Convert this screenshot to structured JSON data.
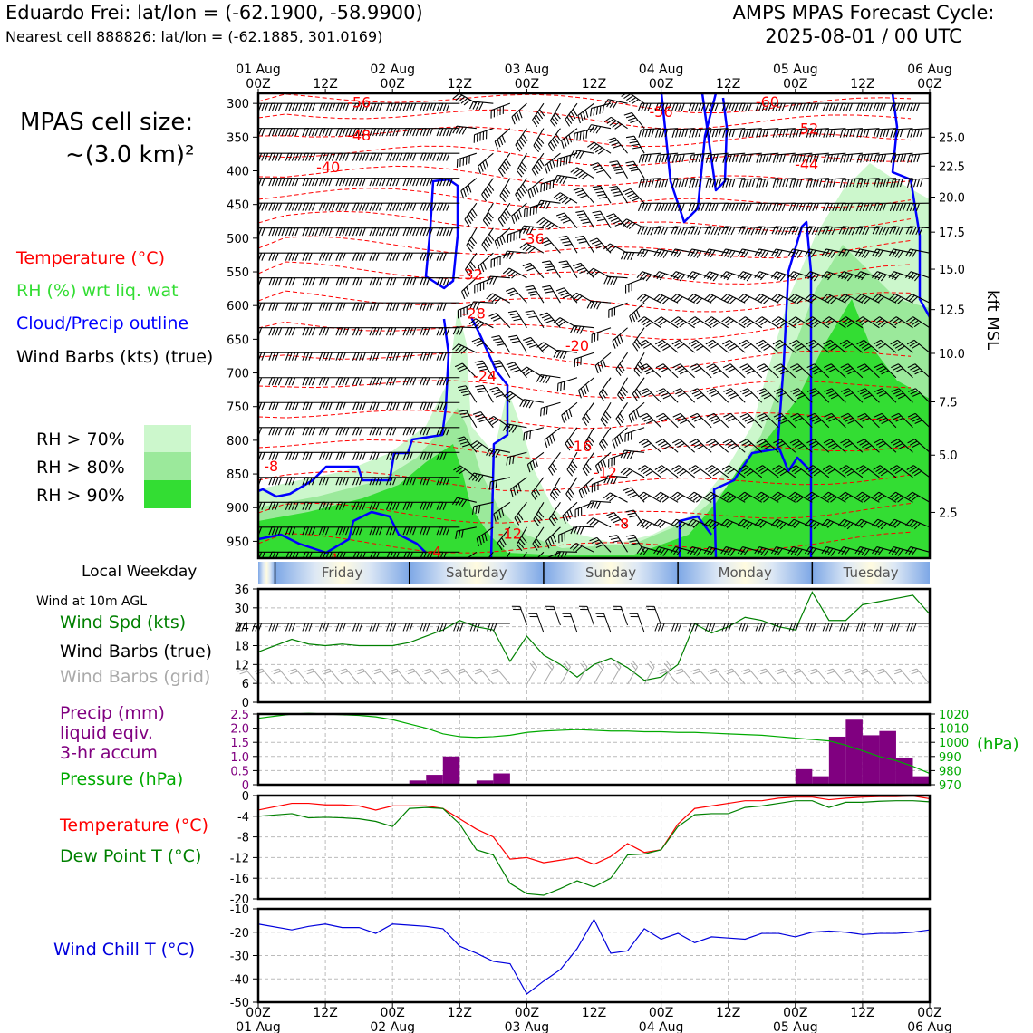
{
  "header": {
    "title_left": "Eduardo Frei: lat/lon = (-62.1900, -58.9900)",
    "subtitle_left": "Nearest cell 888826: lat/lon = (-62.1885, 301.0169)",
    "title_right_1": "AMPS MPAS Forecast Cycle:",
    "title_right_2": "2025-08-01 / 00 UTC",
    "cell_size_1": "MPAS cell size:",
    "cell_size_2": "~(3.0 km)²"
  },
  "legend": {
    "temperature": "Temperature (°C)",
    "rh": "RH (%) wrt liq. wat",
    "cloud": "Cloud/Precip outline",
    "wind": "Wind Barbs (kts) (true)",
    "rh70": "RH > 70%",
    "rh80": "RH > 80%",
    "rh90": "RH > 90%",
    "weekday_title": "Local Weekday",
    "wind10m": "Wind at 10m AGL",
    "wind_spd": "Wind Spd (kts)",
    "wind_barbs_true": "Wind Barbs (true)",
    "wind_barbs_grid": "Wind Barbs (grid)",
    "precip_1": "Precip (mm)",
    "precip_2": "liquid eqiv.",
    "precip_3": "3-hr accum",
    "pressure": "Pressure (hPa)",
    "temp2": "Temperature (°C)",
    "dewpoint": "Dew Point T (°C)",
    "windchill": "Wind Chill T (°C)",
    "hpa_unit": "(hPa)",
    "kft": "kft MSL"
  },
  "colors": {
    "temperature": "#ff0000",
    "rh_legend": "#33cc33",
    "cloud": "#0000ff",
    "rh70": "#ccf7cc",
    "rh80": "#9be99b",
    "rh90": "#33dd33",
    "wind_speed": "#008000",
    "precip": "#800080",
    "pressure": "#00aa00",
    "dewpoint": "#008000",
    "windchill": "#0000dd",
    "grid_barbs": "#aaaaaa"
  },
  "chart_data": [
    {
      "type": "heatmap",
      "name_hint": "vertical cross-section",
      "x_top_tick_labels": [
        [
          "01 Aug",
          "00Z"
        ],
        [
          "",
          "12Z"
        ],
        [
          "02 Aug",
          "00Z"
        ],
        [
          "",
          "12Z"
        ],
        [
          "03 Aug",
          "00Z"
        ],
        [
          "",
          "12Z"
        ],
        [
          "04 Aug",
          "00Z"
        ],
        [
          "",
          "12Z"
        ],
        [
          "05 Aug",
          "00Z"
        ],
        [
          "",
          "12Z"
        ],
        [
          "06 Aug",
          "00Z"
        ]
      ],
      "x_hours_range": [
        0,
        120
      ],
      "y_pressure_ticks": [
        300,
        350,
        400,
        450,
        500,
        550,
        600,
        650,
        700,
        750,
        800,
        850,
        900,
        950
      ],
      "ylim_hPa": [
        975,
        285
      ],
      "right_kft_ticks": [
        {
          "label": "25.0",
          "p": 350
        },
        {
          "label": "22.5",
          "p": 393
        },
        {
          "label": "20.0",
          "p": 439
        },
        {
          "label": "17.5",
          "p": 491
        },
        {
          "label": "15.0",
          "p": 546
        },
        {
          "label": "12.5",
          "p": 606
        },
        {
          "label": "10.0",
          "p": 671
        },
        {
          "label": "7.5",
          "p": 743
        },
        {
          "label": "5.0",
          "p": 822
        },
        {
          "label": "2.5",
          "p": 907
        }
      ],
      "temperature_labels": [
        {
          "text": "-56",
          "t": 18,
          "p": 298
        },
        {
          "text": "-48",
          "t": 18,
          "p": 347
        },
        {
          "text": "-40",
          "t": 12.5,
          "p": 394
        },
        {
          "text": "-56",
          "t": 72,
          "p": 312
        },
        {
          "text": "-60",
          "t": 91,
          "p": 297
        },
        {
          "text": "-52",
          "t": 98,
          "p": 337
        },
        {
          "text": "-44",
          "t": 98,
          "p": 390
        },
        {
          "text": "-36",
          "t": 49,
          "p": 500
        },
        {
          "text": "-32",
          "t": 38,
          "p": 553
        },
        {
          "text": "-28",
          "t": 38.5,
          "p": 611
        },
        {
          "text": "-20",
          "t": 57,
          "p": 659
        },
        {
          "text": "-24",
          "t": 40.5,
          "p": 704
        },
        {
          "text": "-16",
          "t": 57.5,
          "p": 808
        },
        {
          "text": "-12",
          "t": 62,
          "p": 847
        },
        {
          "text": "-12",
          "t": 45,
          "p": 938
        },
        {
          "text": "-8",
          "t": 2.3,
          "p": 838
        },
        {
          "text": "-8",
          "t": 65,
          "p": 923
        },
        {
          "text": "-4",
          "t": 31.5,
          "p": 965
        },
        {
          "text": "-4",
          "t": 13,
          "p": 975
        }
      ],
      "weekday_band": [
        "Friday",
        "Saturday",
        "Sunday",
        "Monday",
        "Tuesday"
      ]
    },
    {
      "type": "line",
      "name_hint": "wind speed",
      "x_hours": [
        0,
        6,
        9,
        12,
        15,
        18,
        21,
        24,
        27,
        30,
        33,
        36,
        39,
        42,
        45,
        48,
        51,
        54,
        57,
        60,
        63,
        66,
        69,
        72,
        75,
        78,
        81,
        84,
        87,
        90,
        93,
        96,
        99,
        102,
        105,
        108,
        111,
        114,
        117,
        120
      ],
      "values": [
        16,
        20,
        18.5,
        18,
        18.5,
        18,
        18,
        18,
        19,
        21,
        23,
        26,
        24,
        23,
        13,
        21,
        15,
        12,
        8,
        12,
        14,
        11,
        7,
        8,
        12,
        25,
        22,
        24,
        27,
        26,
        24,
        23,
        35,
        26,
        26,
        31,
        32,
        33,
        34,
        28
      ],
      "ylim": [
        0,
        36
      ],
      "yticks": [
        0,
        6,
        12,
        18,
        24,
        30,
        36
      ]
    },
    {
      "type": "bar",
      "name_hint": "precip",
      "x_hours": [
        28.5,
        31.5,
        34.5,
        40.5,
        43.5,
        97.5,
        100.5,
        103.5,
        106.5,
        109.5,
        112.5,
        115.5,
        118.5
      ],
      "values": [
        0.15,
        0.35,
        1.0,
        0.15,
        0.4,
        0.55,
        0.3,
        1.7,
        2.3,
        1.75,
        1.9,
        0.95,
        0.3
      ],
      "ylim": [
        0,
        2.5
      ],
      "yticks": [
        "0",
        "0.5",
        "1.0",
        "1.5",
        "2.0",
        "2.5"
      ]
    },
    {
      "type": "line",
      "name_hint": "pressure",
      "x_hours": [
        0,
        6,
        9,
        12,
        15,
        18,
        21,
        24,
        27,
        30,
        33,
        36,
        39,
        42,
        45,
        48,
        51,
        54,
        57,
        60,
        63,
        66,
        69,
        72,
        75,
        78,
        81,
        84,
        87,
        90,
        93,
        96,
        99,
        102,
        105,
        108,
        111,
        114,
        117,
        120
      ],
      "values": [
        1017,
        1020,
        1020.5,
        1020,
        1019.5,
        1019,
        1018,
        1016,
        1013,
        1010,
        1006,
        1004,
        1003.5,
        1004,
        1005,
        1007,
        1008,
        1008.5,
        1009,
        1008.5,
        1008,
        1008,
        1007.5,
        1007.5,
        1007,
        1007,
        1006.5,
        1006,
        1005.5,
        1005,
        1004,
        1003,
        1002,
        1001,
        998,
        994,
        990,
        987,
        983,
        978
      ],
      "ylim": [
        970,
        1020
      ],
      "yticks": [
        970,
        980,
        990,
        1000,
        1010,
        1020
      ]
    },
    {
      "type": "line",
      "name_hint": "temperature and dew point",
      "x_hours": [
        0,
        6,
        9,
        12,
        15,
        18,
        21,
        24,
        27,
        30,
        33,
        36,
        39,
        42,
        45,
        48,
        51,
        54,
        57,
        60,
        63,
        66,
        69,
        72,
        75,
        78,
        81,
        84,
        87,
        90,
        93,
        96,
        99,
        102,
        105,
        108,
        111,
        114,
        117,
        120
      ],
      "series": [
        {
          "key": "temperature",
          "values": [
            -2.8,
            -1.5,
            -1.5,
            -1.8,
            -1.8,
            -2.0,
            -2.8,
            -2.0,
            -2.0,
            -2.0,
            -2.5,
            -4.5,
            -6.5,
            -8.0,
            -12.3,
            -12.0,
            -13.0,
            -12.5,
            -12.0,
            -13.3,
            -11.8,
            -9.3,
            -11.0,
            -10.5,
            -5.5,
            -2.5,
            -2.0,
            -1.5,
            -1.0,
            -1.0,
            -0.5,
            -0.3,
            -0.3,
            -0.8,
            -0.5,
            -0.3,
            -0.2,
            -0.2,
            -0.1,
            -0.6
          ]
        },
        {
          "key": "dewpoint",
          "values": [
            -4.0,
            -3.5,
            -4.3,
            -4.2,
            -4.3,
            -4.5,
            -5.0,
            -6.0,
            -2.5,
            -2.3,
            -2.5,
            -5.5,
            -10.5,
            -11.5,
            -17.0,
            -19.0,
            -19.3,
            -18.0,
            -16.5,
            -17.7,
            -16.0,
            -11.5,
            -11.3,
            -10.5,
            -6.0,
            -3.7,
            -3.5,
            -3.5,
            -2.3,
            -2.0,
            -1.5,
            -1.0,
            -1.0,
            -2.3,
            -1.3,
            -1.3,
            -1.1,
            -1.0,
            -1.0,
            -1.2
          ]
        }
      ],
      "ylim": [
        -20,
        0
      ],
      "yticks": [
        0,
        -4,
        -8,
        -12,
        -16,
        -20
      ]
    },
    {
      "type": "line",
      "name_hint": "wind chill",
      "x_hours": [
        0,
        6,
        9,
        12,
        15,
        18,
        21,
        24,
        27,
        30,
        33,
        36,
        39,
        42,
        45,
        48,
        51,
        54,
        57,
        60,
        63,
        66,
        69,
        72,
        75,
        78,
        81,
        84,
        87,
        90,
        93,
        96,
        99,
        102,
        105,
        108,
        111,
        114,
        117,
        120
      ],
      "values": [
        -16.5,
        -19,
        -17.5,
        -16.5,
        -18,
        -18,
        -20.5,
        -16.5,
        -17,
        -17.5,
        -18.5,
        -26,
        -29,
        -32.5,
        -33.5,
        -46.5,
        -41,
        -36,
        -27,
        -14.5,
        -29,
        -28,
        -18.5,
        -23,
        -20.5,
        -24.5,
        -22,
        -22.5,
        -23,
        -20.5,
        -20.5,
        -22,
        -20,
        -19.5,
        -20,
        -21,
        -20.5,
        -20.5,
        -20,
        -19
      ],
      "ylim": [
        -50,
        -10
      ],
      "yticks": [
        -10,
        -20,
        -30,
        -40,
        -50
      ]
    }
  ],
  "bottom_axis": {
    "tick_labels": [
      [
        "00Z",
        "01 Aug"
      ],
      [
        "12Z",
        ""
      ],
      [
        "00Z",
        "02 Aug"
      ],
      [
        "12Z",
        ""
      ],
      [
        "00Z",
        "03 Aug"
      ],
      [
        "12Z",
        ""
      ],
      [
        "00Z",
        "04 Aug"
      ],
      [
        "12Z",
        ""
      ],
      [
        "00Z",
        "05 Aug"
      ],
      [
        "12Z",
        ""
      ],
      [
        "00Z",
        "06 Aug"
      ]
    ]
  }
}
